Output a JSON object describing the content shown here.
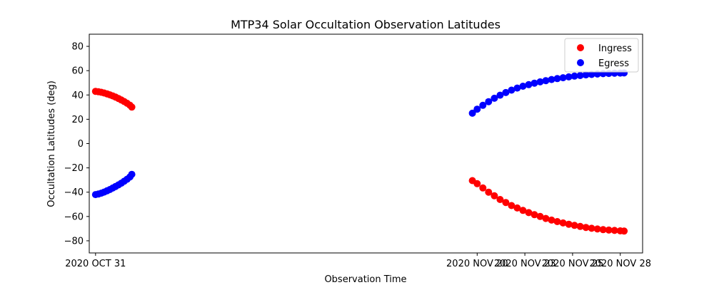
{
  "chart_data": {
    "type": "scatter",
    "title": "MTP34 Solar Occultation Observation Latitudes",
    "xlabel": "Observation Time",
    "ylabel": "Occultation Latitudes (deg)",
    "x_unit": "day of month (October 31 = 31, November dates = 31 + day)",
    "xlim": [
      30.67,
      59.67
    ],
    "ylim": [
      -90,
      90
    ],
    "x_ticks": [
      {
        "value": 31,
        "label": "2020 OCT 31"
      },
      {
        "value": 51,
        "label": "2020 NOV 20"
      },
      {
        "value": 53.5,
        "label": "2020 NOV 23"
      },
      {
        "value": 56,
        "label": "2020 NOV 25"
      },
      {
        "value": 58.5,
        "label": "2020 NOV 28"
      }
    ],
    "y_ticks": [
      -80,
      -60,
      -40,
      -20,
      0,
      20,
      40,
      60,
      80
    ],
    "legend": {
      "placement": "top-right"
    },
    "series": [
      {
        "name": "Ingress",
        "color": "#ff0000",
        "x": [
          31.0,
          31.15,
          31.3,
          31.45,
          31.6,
          31.75,
          31.9,
          32.05,
          32.2,
          32.35,
          32.5,
          32.65,
          32.8,
          32.9,
          50.75,
          51.0,
          51.3,
          51.6,
          51.9,
          52.2,
          52.5,
          52.8,
          53.1,
          53.4,
          53.7,
          54.0,
          54.3,
          54.6,
          54.9,
          55.2,
          55.5,
          55.8,
          56.1,
          56.4,
          56.7,
          57.0,
          57.3,
          57.6,
          57.9,
          58.2,
          58.5,
          58.7
        ],
        "y": [
          43,
          42.7,
          42.2,
          41.6,
          40.9,
          40.1,
          39.2,
          38.2,
          37.1,
          35.9,
          34.6,
          33.2,
          31.6,
          30,
          -30.5,
          -33,
          -36.5,
          -40,
          -43,
          -46,
          -48.5,
          -51,
          -53,
          -55,
          -56.8,
          -58.5,
          -60,
          -61.6,
          -63,
          -64.2,
          -65.3,
          -66.4,
          -67.3,
          -68.2,
          -69,
          -69.7,
          -70.3,
          -70.8,
          -71.2,
          -71.5,
          -71.8,
          -72
        ]
      },
      {
        "name": "Egress",
        "color": "#0000ff",
        "x": [
          31.0,
          31.15,
          31.3,
          31.45,
          31.6,
          31.75,
          31.9,
          32.05,
          32.2,
          32.35,
          32.5,
          32.65,
          32.8,
          32.9,
          50.75,
          51.0,
          51.3,
          51.6,
          51.9,
          52.2,
          52.5,
          52.8,
          53.1,
          53.4,
          53.7,
          54.0,
          54.3,
          54.6,
          54.9,
          55.2,
          55.5,
          55.8,
          56.1,
          56.4,
          56.7,
          57.0,
          57.3,
          57.6,
          57.9,
          58.2,
          58.5,
          58.7
        ],
        "y": [
          -42,
          -41.5,
          -40.8,
          -39.9,
          -38.9,
          -37.8,
          -36.6,
          -35.3,
          -34,
          -32.6,
          -31,
          -29.4,
          -27.5,
          -25.3,
          25,
          28.3,
          31.5,
          34.5,
          37.3,
          39.8,
          42,
          44,
          45.7,
          47.2,
          48.5,
          49.7,
          50.8,
          51.8,
          52.7,
          53.5,
          54.2,
          54.9,
          55.5,
          56,
          56.5,
          56.9,
          57.2,
          57.5,
          57.7,
          57.9,
          58,
          58.1
        ]
      }
    ]
  }
}
